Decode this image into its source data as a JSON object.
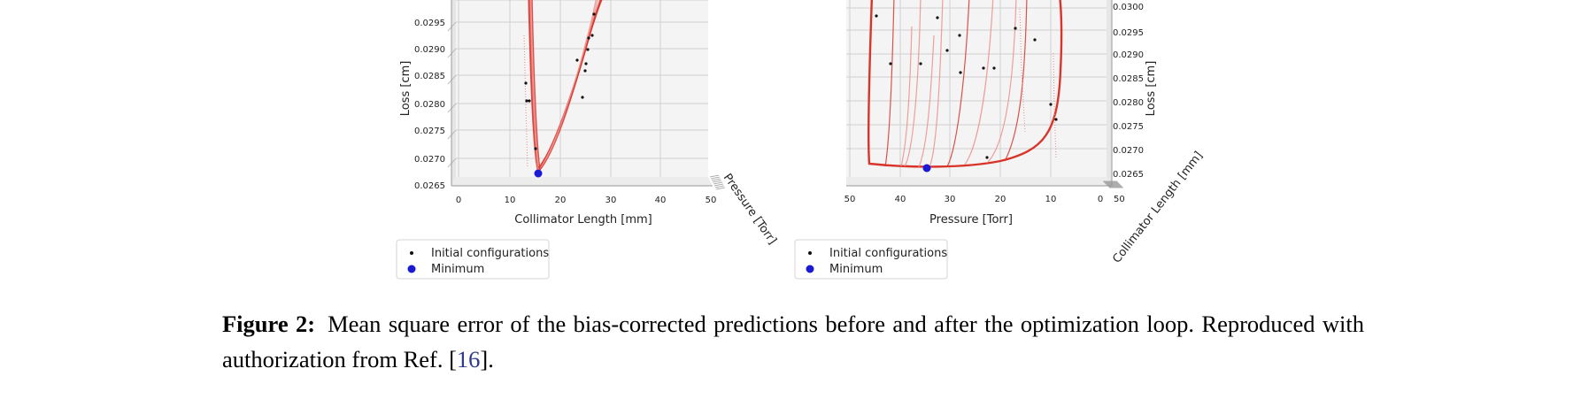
{
  "figure_left": {
    "y_ticks": [
      "0.0295",
      "0.0290",
      "0.0285",
      "0.0280",
      "0.0275",
      "0.0270",
      "0.0265"
    ],
    "x_ticks": [
      "0",
      "10",
      "20",
      "30",
      "40",
      "50"
    ],
    "x_label": "Collimator Length [mm]",
    "y_label": "Loss [cm]",
    "depth_label": "Pressure [Torr]",
    "legend": {
      "initial": "Initial configurations",
      "minimum": "Minimum"
    }
  },
  "figure_right": {
    "y_ticks": [
      "0.0300",
      "0.0295",
      "0.0290",
      "0.0285",
      "0.0280",
      "0.0275",
      "0.0270",
      "0.0265"
    ],
    "x_ticks": [
      "50",
      "40",
      "30",
      "20",
      "10",
      "0"
    ],
    "x_label": "Pressure [Torr]",
    "y_label": "Loss [cm]",
    "depth_label": "Collimator Length [mm]",
    "depth_tick": "50",
    "legend": {
      "initial": "Initial configurations",
      "minimum": "Minimum"
    }
  },
  "colors": {
    "curve": "#d9342b",
    "curve_light": "#eb8f8a",
    "point": "#111111",
    "minimum": "#1a1ad6",
    "pane": "#f3f3f3",
    "grid": "#d0d0d0"
  },
  "caption": {
    "figure_number": "Figure 2:",
    "text": "Mean square error of the bias-corrected predictions before and after the optimization loop. Reproduced with authorization from Ref. [",
    "ref_number": "16",
    "text_end": "]."
  }
}
